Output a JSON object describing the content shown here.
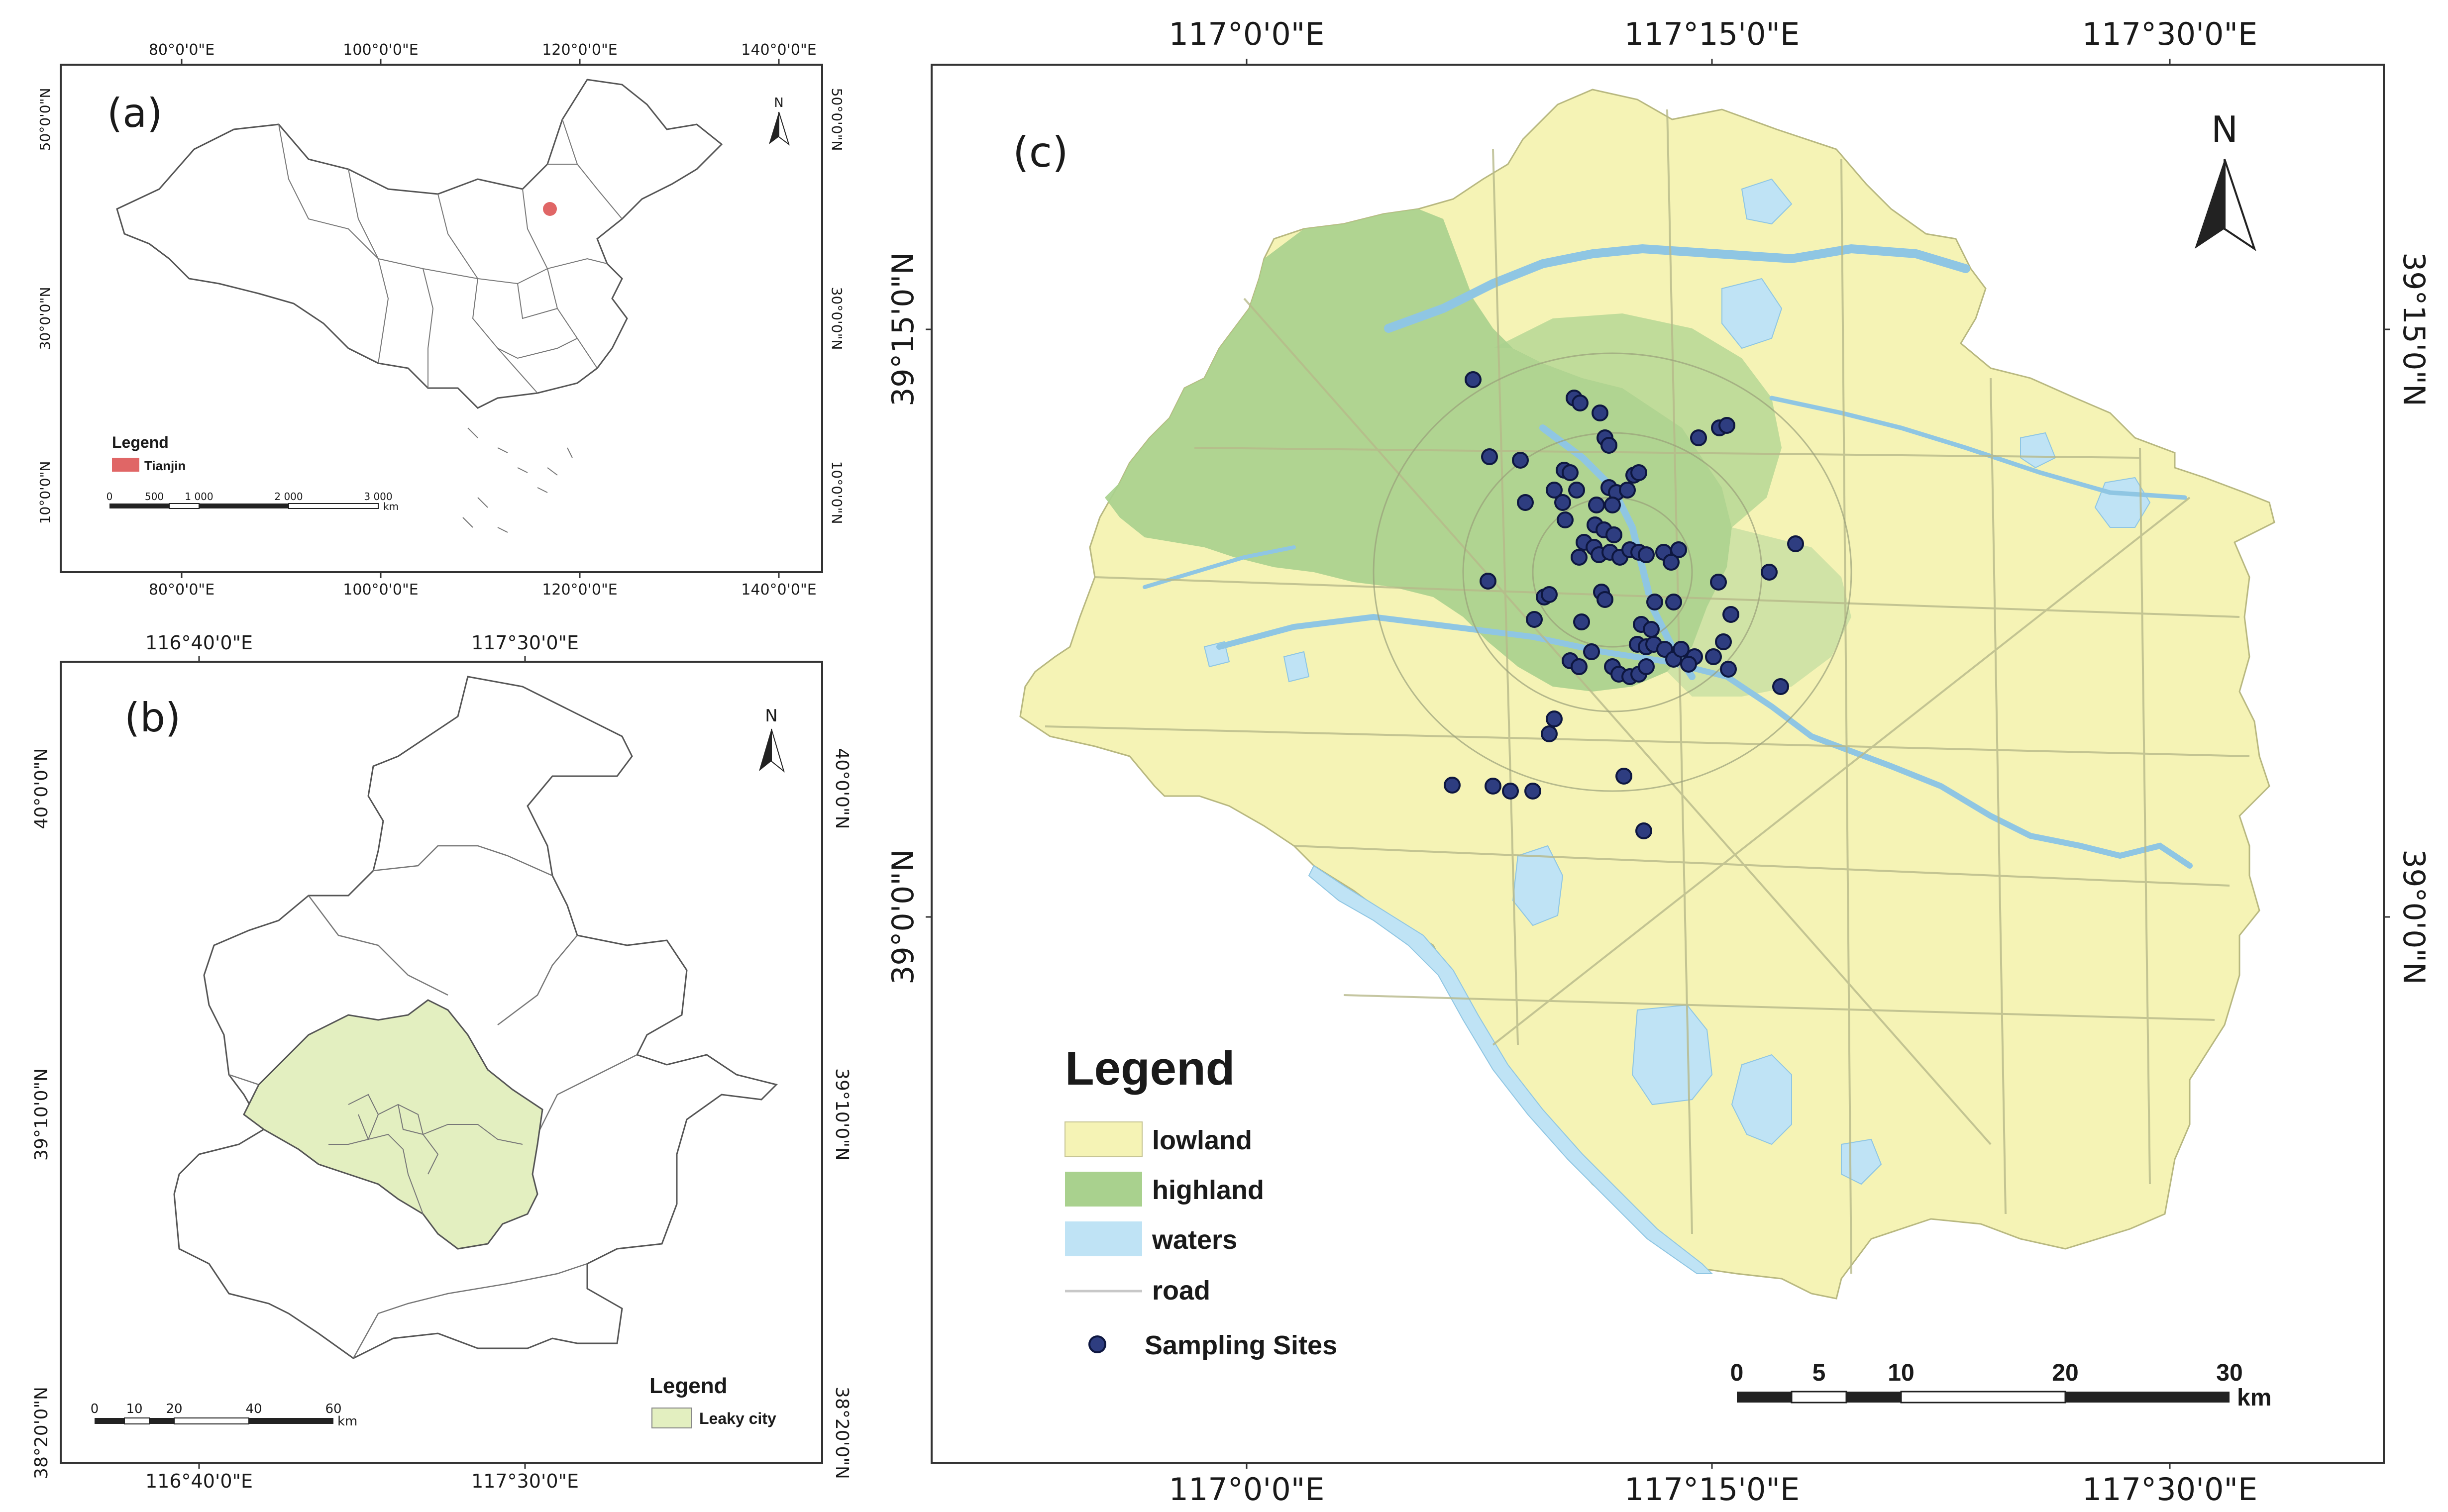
{
  "panel_a": {
    "label": "(a)",
    "top_ticks": [
      "80°0'0\"E",
      "100°0'0\"E",
      "120°0'0\"E",
      "140°0'0\"E"
    ],
    "bottom_ticks": [
      "80°0'0\"E",
      "100°0'0\"E",
      "120°0'0\"E",
      "140°0'0\"E"
    ],
    "left_ticks": [
      "50°0'0\"N",
      "30°0'0\"N",
      "10°0'0\"N"
    ],
    "right_ticks": [
      "50°0'0\"N",
      "30°0'0\"N",
      "10°0'0\"N"
    ],
    "north": "N",
    "legend_title": "Legend",
    "legend_item": "Tianjin",
    "legend_color": "#e06666",
    "scale_labels": [
      "0",
      "500",
      "1 000",
      "2 000",
      "3 000"
    ],
    "scale_unit": "km"
  },
  "panel_b": {
    "label": "(b)",
    "top_ticks": [
      "116°40'0\"E",
      "117°30'0\"E"
    ],
    "bottom_ticks": [
      "116°40'0\"E",
      "117°30'0\"E"
    ],
    "left_ticks": [
      "40°0'0\"N",
      "39°10'0\"N",
      "38°20'0\"N"
    ],
    "right_ticks": [
      "40°0'0\"N",
      "39°10'0\"N",
      "38°20'0\"N"
    ],
    "north": "N",
    "legend_title": "Legend",
    "legend_item": "Leaky city",
    "legend_color": "#e3efc0",
    "scale_labels": [
      "0",
      "10",
      "20",
      "40",
      "60"
    ],
    "scale_unit": "km"
  },
  "panel_c": {
    "label": "(c)",
    "top_ticks": [
      "117°0'0\"E",
      "117°15'0\"E",
      "117°30'0\"E"
    ],
    "bottom_ticks": [
      "117°0'0\"E",
      "117°15'0\"E",
      "117°30'0\"E"
    ],
    "left_ticks": [
      "39°15'0\"N",
      "39°0'0\"N"
    ],
    "right_ticks": [
      "39°15'0\"N",
      "39°0'0\"N"
    ],
    "north": "N",
    "legend": {
      "title": "Legend",
      "items": [
        {
          "label": "lowland",
          "color": "#f5f3b5"
        },
        {
          "label": "highland",
          "color": "#a9d18e"
        },
        {
          "label": "waters",
          "color": "#bfe3f5"
        },
        {
          "label": "road",
          "color": "#c8c8c8"
        },
        {
          "label": "Sampling Sites",
          "color": "#2e3d80"
        }
      ]
    },
    "scale_labels": [
      "0",
      "5",
      "10",
      "20",
      "30"
    ],
    "scale_unit": "km"
  }
}
